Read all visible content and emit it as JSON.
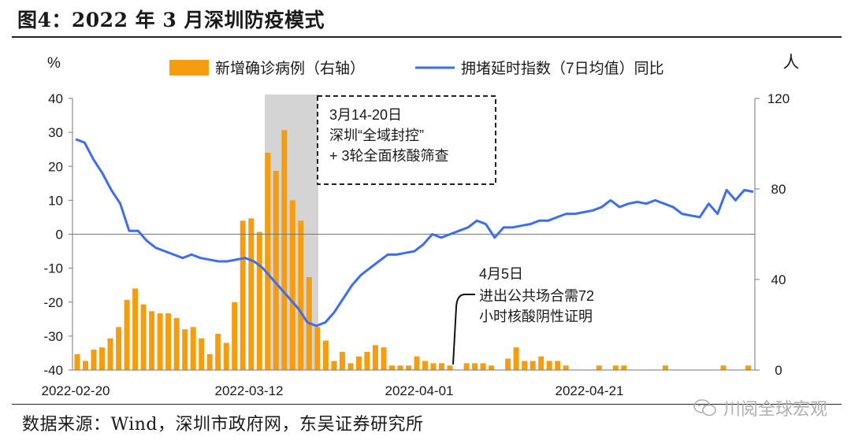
{
  "figure": {
    "title": "图4：2022 年 3 月深圳防疫模式",
    "source": "数据来源：Wind，深圳市政府网，东吴证券研究所",
    "watermark": "川阅全球宏观"
  },
  "chart_data": {
    "type": "bar",
    "x_tick_labels": [
      "2022-02-20",
      "2022-03-12",
      "2022-04-01",
      "2022-04-21"
    ],
    "left_axis": {
      "unit": "%",
      "ticks": [
        40,
        30,
        20,
        10,
        0,
        -10,
        -20,
        -30,
        -40
      ],
      "ylim": [
        -40,
        40
      ]
    },
    "right_axis": {
      "unit": "人",
      "ticks": [
        120,
        80,
        40,
        0
      ],
      "ylim": [
        0,
        120
      ]
    },
    "legend": {
      "placement": "top"
    },
    "series": [
      {
        "name": "新增确诊病例（右轴）",
        "type": "bar",
        "axis": "right",
        "color": "#F59D0F",
        "values": [
          7,
          4,
          9,
          10,
          14,
          19,
          31,
          36,
          29,
          26,
          25,
          25,
          23,
          18,
          19,
          14,
          7,
          16,
          12,
          30,
          66,
          67,
          61,
          96,
          88,
          106,
          75,
          66,
          41,
          19,
          13,
          4,
          8,
          3,
          6,
          8,
          11,
          10,
          2,
          2,
          2,
          6,
          4,
          3,
          3,
          2,
          0,
          3,
          3,
          3,
          2,
          0,
          5,
          10,
          4,
          4,
          6,
          4,
          4,
          2,
          0,
          0,
          0,
          2,
          0,
          2,
          2,
          0,
          0,
          0,
          0,
          2,
          0,
          0,
          0,
          0,
          0,
          0,
          2,
          0,
          0,
          2
        ]
      },
      {
        "name": "拥堵延时指数（7日均值）同比",
        "type": "line",
        "axis": "left",
        "color": "#3D6EEF",
        "values": [
          28,
          27,
          22,
          18,
          13,
          9,
          1,
          1,
          -2,
          -4,
          -5,
          -6,
          -7,
          -6,
          -7,
          -7.5,
          -8,
          -8,
          -7.5,
          -7,
          -8,
          -10,
          -13,
          -16,
          -19,
          -22,
          -26,
          -27,
          -26,
          -23,
          -19,
          -15,
          -12,
          -10,
          -8,
          -6,
          -6,
          -5.5,
          -5,
          -3,
          0,
          -1,
          0,
          1,
          2,
          4,
          3,
          -1,
          2,
          2,
          2.5,
          3,
          4,
          4,
          5,
          6,
          6,
          6.5,
          7,
          8,
          10,
          8,
          9,
          9.5,
          9,
          10,
          9,
          8,
          6,
          5.5,
          5,
          9,
          6,
          13,
          10,
          13,
          12.5
        ]
      }
    ],
    "annotations": [
      {
        "title": "3月14-20日",
        "lines": [
          "深圳“全域封控”",
          "+ 3轮全面核酸筛查"
        ],
        "x_range": [
          "2022-03-14",
          "2022-03-20"
        ],
        "style": "dashed-box, shaded band"
      },
      {
        "title": "4月5日",
        "lines": [
          "进出公共场合需72",
          "小时核酸阴性证明"
        ],
        "x": "2022-04-05",
        "style": "callout"
      }
    ],
    "colors": {
      "bar": "#F59D0F",
      "line": "#3D6EEF",
      "shade": "#D4D4D4"
    }
  }
}
